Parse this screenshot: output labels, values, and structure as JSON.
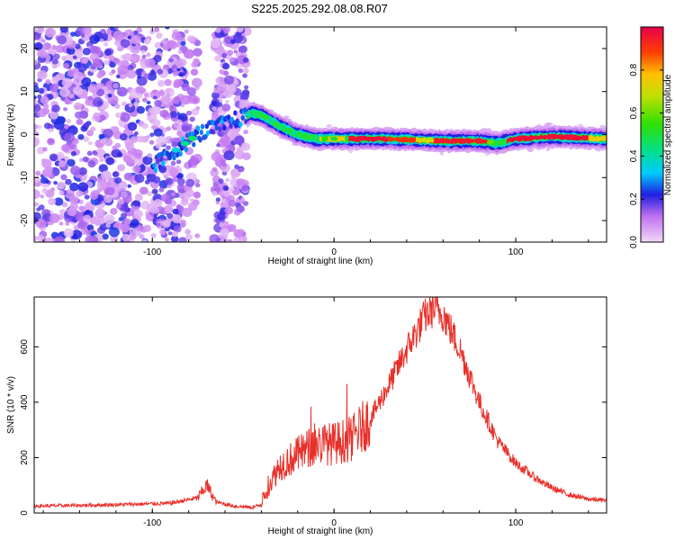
{
  "title": "S225.2025.292.08.08.R07",
  "chart_data": [
    {
      "type": "heatmap",
      "name": "spectrogram",
      "xlabel": "Height of straight line (km)",
      "ylabel": "Frequency (Hz)",
      "xlim": [
        -165,
        150
      ],
      "ylim": [
        -25,
        25
      ],
      "xticks": [
        -100,
        0,
        100
      ],
      "yticks": [
        -20,
        -10,
        0,
        10,
        20
      ],
      "colorbar": {
        "label": "Normalized spectral amplitude",
        "range": [
          0,
          1
        ],
        "ticks": [
          0.0,
          0.2,
          0.4,
          0.6,
          0.8
        ]
      },
      "ridge": {
        "x": [
          -95,
          -85,
          -75,
          -60,
          -50,
          -45,
          -40,
          -30,
          -20,
          -10,
          0,
          10,
          30,
          60,
          80,
          90,
          100,
          120,
          150
        ],
        "y": [
          -6,
          -3,
          0,
          2.5,
          4,
          5,
          4.5,
          2,
          0,
          -1,
          -1,
          -1,
          -1,
          -1.5,
          -1.5,
          -2,
          -1,
          -0.5,
          -1
        ]
      }
    },
    {
      "type": "line",
      "name": "snr",
      "xlabel": "Height of straight line (km)",
      "ylabel": "SNR (10 * v/v)",
      "xlim": [
        -165,
        150
      ],
      "ylim": [
        0,
        780
      ],
      "xticks": [
        -100,
        0,
        100
      ],
      "yticks": [
        0,
        200,
        400,
        600
      ],
      "color": "#e8302a",
      "series": [
        {
          "name": "SNR",
          "x": [
            -165,
            -120,
            -90,
            -75,
            -70,
            -65,
            -55,
            -45,
            -40,
            -35,
            -30,
            -20,
            -10,
            0,
            10,
            20,
            30,
            40,
            50,
            55,
            60,
            70,
            80,
            90,
            100,
            110,
            120,
            130,
            140,
            150
          ],
          "y": [
            25,
            30,
            35,
            55,
            100,
            40,
            25,
            20,
            30,
            110,
            170,
            210,
            250,
            250,
            270,
            340,
            460,
            590,
            710,
            740,
            720,
            580,
            400,
            260,
            180,
            130,
            90,
            65,
            50,
            45
          ]
        }
      ]
    }
  ]
}
